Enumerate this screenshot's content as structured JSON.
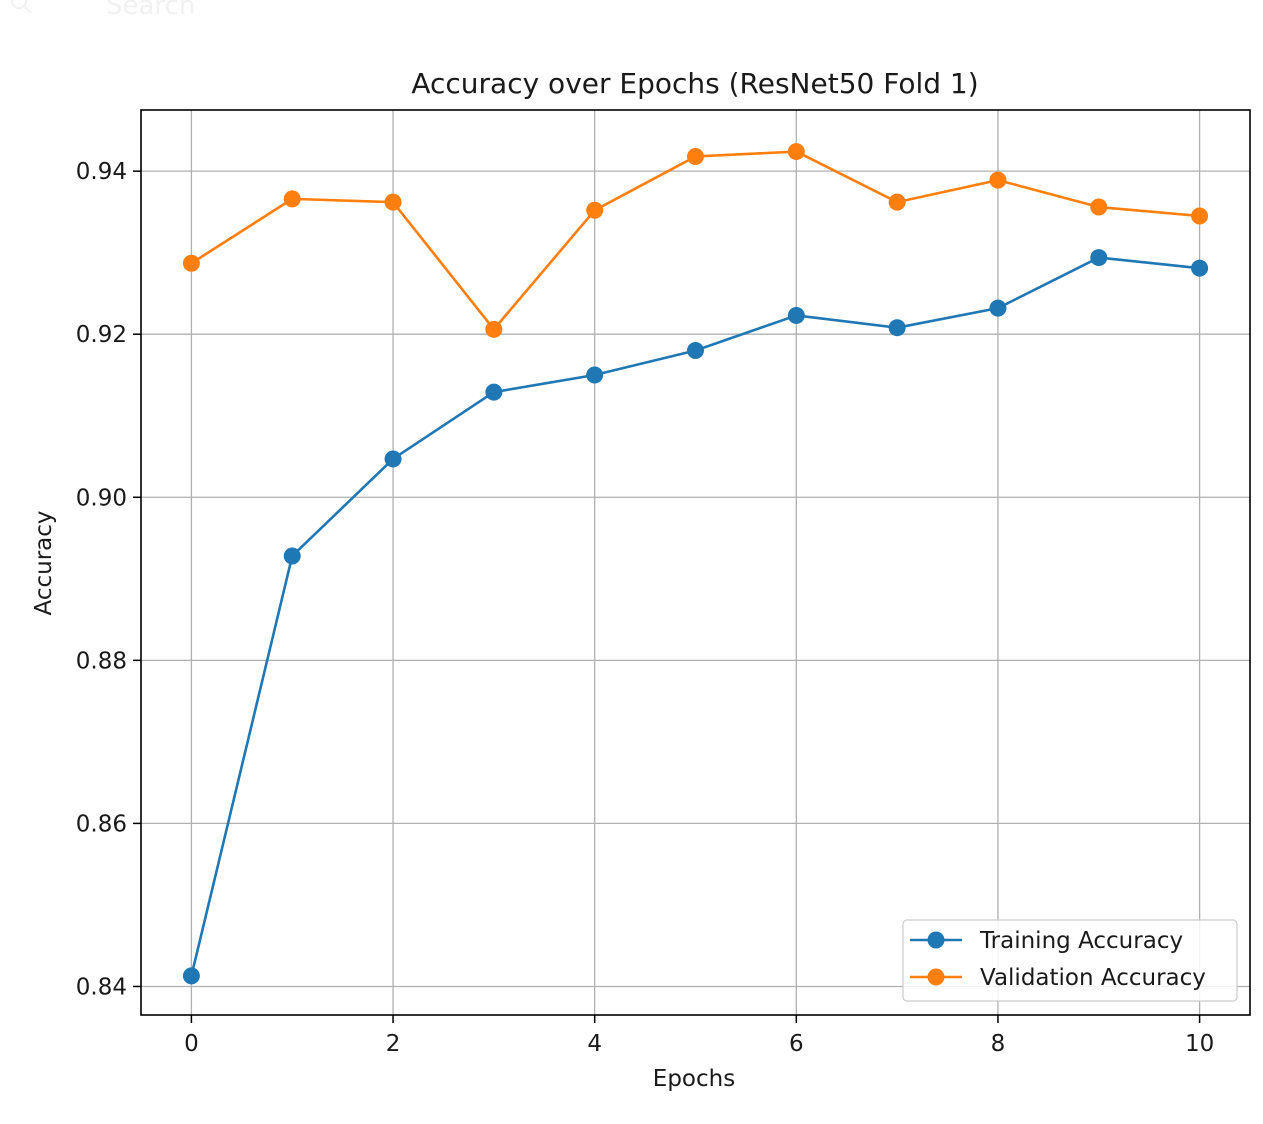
{
  "search": {
    "placeholder": "Search",
    "icon": "search-icon"
  },
  "colors": {
    "training": "#1f77b4",
    "validation": "#ff7f0e",
    "grid": "#b0b0b0",
    "axes": "#000000",
    "search_ghost": "#f1f1f1"
  },
  "chart_data": {
    "type": "line",
    "title": "Accuracy over Epochs (ResNet50 Fold 1)",
    "xlabel": "Epochs",
    "ylabel": "Accuracy",
    "x": [
      0,
      1,
      2,
      3,
      4,
      5,
      6,
      7,
      8,
      9,
      10
    ],
    "xlim": [
      -0.5,
      10.5
    ],
    "ylim": [
      0.8365,
      0.9475
    ],
    "xticks": [
      0,
      2,
      4,
      6,
      8,
      10
    ],
    "yticks": [
      0.84,
      0.86,
      0.88,
      0.9,
      0.92,
      0.94
    ],
    "ytick_labels": [
      "0.84",
      "0.86",
      "0.88",
      "0.90",
      "0.92",
      "0.94"
    ],
    "grid": true,
    "legend_position": "lower-right",
    "series": [
      {
        "name": "Training Accuracy",
        "color": "#1f77b4",
        "marker": "circle",
        "values": [
          0.8413,
          0.8928,
          0.9047,
          0.9129,
          0.915,
          0.918,
          0.9223,
          0.9208,
          0.9232,
          0.9294,
          0.9281
        ]
      },
      {
        "name": "Validation Accuracy",
        "color": "#ff7f0e",
        "marker": "circle",
        "values": [
          0.9287,
          0.9366,
          0.9362,
          0.9206,
          0.9352,
          0.9418,
          0.9424,
          0.9362,
          0.9389,
          0.9356,
          0.9345
        ]
      }
    ]
  }
}
